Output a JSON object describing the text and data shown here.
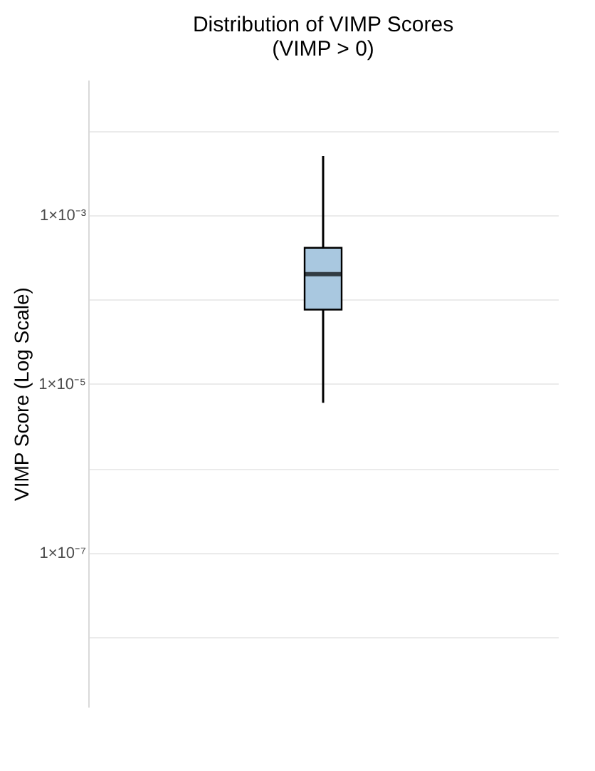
{
  "chart_data": {
    "type": "box",
    "title": "Distribution of VIMP Scores\n(VIMP > 0)",
    "ylabel": "VIMP Score (Log Scale)",
    "categories": [
      null
    ],
    "boxes": [
      {
        "low": 6e-06,
        "q1": 7.6e-05,
        "median": 0.0002,
        "q3": 0.00041,
        "high": 0.005
      }
    ],
    "color": "#a9c8e0",
    "log": true,
    "ylim": [
      1.5e-09,
      0.04
    ],
    "yticks": [
      {
        "value": 1e-08,
        "label": null
      },
      {
        "value": 1e-07,
        "label": "1×10⁻⁷"
      },
      {
        "value": 1e-06,
        "label": null
      },
      {
        "value": 1e-05,
        "label": "1×10⁻⁵"
      },
      {
        "value": 0.0001,
        "label": null
      },
      {
        "value": 0.001,
        "label": "1×10⁻³"
      },
      {
        "value": 0.01,
        "label": null
      }
    ],
    "grid": true
  }
}
